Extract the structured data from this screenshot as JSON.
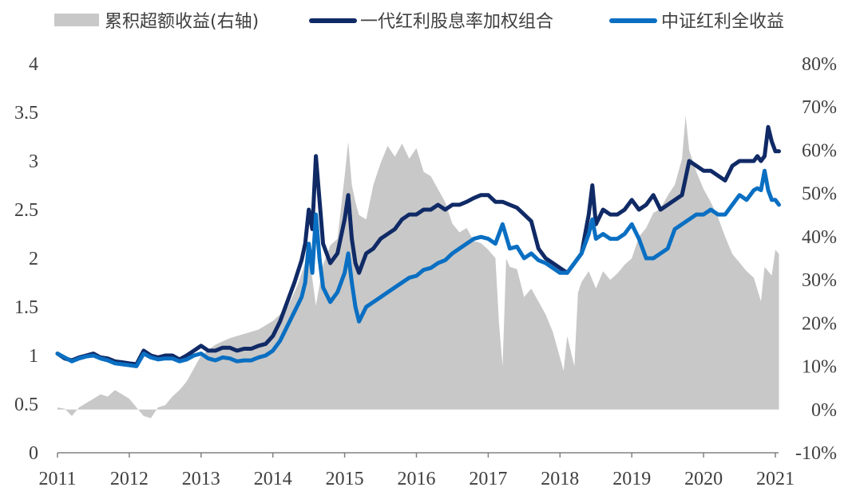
{
  "chart_data": {
    "type": "line",
    "legend_position": "top",
    "grid": false,
    "series": [
      {
        "name": "累积超额收益(右轴)",
        "type": "area",
        "axis": "right",
        "color": "#c8c8c8",
        "x": [
          2011.0,
          2011.1,
          2011.2,
          2011.3,
          2011.4,
          2011.5,
          2011.6,
          2011.7,
          2011.8,
          2011.9,
          2012.0,
          2012.1,
          2012.2,
          2012.3,
          2012.4,
          2012.5,
          2012.6,
          2012.7,
          2012.8,
          2012.9,
          2013.0,
          2013.2,
          2013.4,
          2013.6,
          2013.8,
          2014.0,
          2014.2,
          2014.35,
          2014.5,
          2014.6,
          2014.7,
          2014.8,
          2014.9,
          2015.0,
          2015.05,
          2015.1,
          2015.15,
          2015.2,
          2015.3,
          2015.4,
          2015.5,
          2015.6,
          2015.7,
          2015.8,
          2015.9,
          2016.0,
          2016.1,
          2016.2,
          2016.3,
          2016.4,
          2016.5,
          2016.6,
          2016.7,
          2016.8,
          2016.9,
          2017.0,
          2017.1,
          2017.15,
          2017.2,
          2017.25,
          2017.3,
          2017.4,
          2017.5,
          2017.6,
          2017.7,
          2017.8,
          2017.9,
          2018.0,
          2018.05,
          2018.1,
          2018.15,
          2018.2,
          2018.25,
          2018.3,
          2018.4,
          2018.5,
          2018.6,
          2018.7,
          2018.8,
          2018.9,
          2019.0,
          2019.1,
          2019.2,
          2019.3,
          2019.4,
          2019.5,
          2019.6,
          2019.7,
          2019.75,
          2019.8,
          2019.9,
          2020.0,
          2020.1,
          2020.2,
          2020.3,
          2020.4,
          2020.5,
          2020.6,
          2020.7,
          2020.8,
          2020.85,
          2020.9,
          2020.95,
          2021.0,
          2021.05
        ],
        "values": [
          0.5,
          0.2,
          -1.5,
          0.5,
          1.5,
          2.5,
          3.5,
          3.0,
          4.5,
          3.5,
          2.5,
          0.5,
          -1.5,
          -2.0,
          0.5,
          1.0,
          3.0,
          4.5,
          6.5,
          9.5,
          12.5,
          15.0,
          16.5,
          17.5,
          18.5,
          20.5,
          23.5,
          29.0,
          36.5,
          24.0,
          33.5,
          38.0,
          39.5,
          54.0,
          62.0,
          52.0,
          48.0,
          45.0,
          44.0,
          52.0,
          57.0,
          61.0,
          58.5,
          61.5,
          58.0,
          60.5,
          55.0,
          54.0,
          51.0,
          48.0,
          43.0,
          41.0,
          42.0,
          39.0,
          38.5,
          37.0,
          35.0,
          20.0,
          10.0,
          35.0,
          33.0,
          32.5,
          26.0,
          28.0,
          25.0,
          22.0,
          18.0,
          12.0,
          9.0,
          17.0,
          13.5,
          10.0,
          27.0,
          29.5,
          32.0,
          28.0,
          32.0,
          30.0,
          31.5,
          33.5,
          35.0,
          40.0,
          42.0,
          45.5,
          46.5,
          49.5,
          52.0,
          58.0,
          68.0,
          60.0,
          55.0,
          51.0,
          48.0,
          44.5,
          40.0,
          36.0,
          34.0,
          32.0,
          30.5,
          25.0,
          33.0,
          32.0,
          31.0,
          37.0,
          36.0
        ]
      },
      {
        "name": "一代红利股息率加权组合",
        "type": "line",
        "axis": "left",
        "color": "#102a66",
        "x": [
          2011.0,
          2011.1,
          2011.2,
          2011.3,
          2011.4,
          2011.5,
          2011.6,
          2011.7,
          2011.8,
          2011.9,
          2012.0,
          2012.1,
          2012.2,
          2012.3,
          2012.4,
          2012.5,
          2012.6,
          2012.7,
          2012.8,
          2012.9,
          2013.0,
          2013.1,
          2013.2,
          2013.3,
          2013.4,
          2013.5,
          2013.6,
          2013.7,
          2013.8,
          2013.9,
          2014.0,
          2014.1,
          2014.2,
          2014.3,
          2014.4,
          2014.45,
          2014.5,
          2014.55,
          2014.6,
          2014.65,
          2014.7,
          2014.8,
          2014.9,
          2015.0,
          2015.05,
          2015.1,
          2015.15,
          2015.2,
          2015.3,
          2015.4,
          2015.5,
          2015.6,
          2015.7,
          2015.8,
          2015.9,
          2016.0,
          2016.1,
          2016.2,
          2016.3,
          2016.4,
          2016.5,
          2016.6,
          2016.7,
          2016.8,
          2016.9,
          2017.0,
          2017.1,
          2017.2,
          2017.3,
          2017.4,
          2017.5,
          2017.6,
          2017.7,
          2017.8,
          2017.9,
          2018.0,
          2018.1,
          2018.2,
          2018.3,
          2018.4,
          2018.45,
          2018.5,
          2018.6,
          2018.7,
          2018.8,
          2018.9,
          2019.0,
          2019.1,
          2019.2,
          2019.3,
          2019.4,
          2019.5,
          2019.6,
          2019.7,
          2019.8,
          2019.9,
          2020.0,
          2020.1,
          2020.2,
          2020.3,
          2020.4,
          2020.5,
          2020.6,
          2020.7,
          2020.75,
          2020.8,
          2020.85,
          2020.9,
          2020.95,
          2021.0,
          2021.05
        ],
        "values": [
          1.02,
          0.97,
          0.95,
          0.98,
          1.0,
          1.02,
          0.98,
          0.97,
          0.94,
          0.93,
          0.92,
          0.91,
          1.05,
          1.0,
          0.98,
          1.0,
          1.0,
          0.96,
          1.0,
          1.05,
          1.1,
          1.05,
          1.05,
          1.08,
          1.08,
          1.05,
          1.07,
          1.07,
          1.1,
          1.12,
          1.2,
          1.35,
          1.55,
          1.75,
          1.98,
          2.15,
          2.5,
          2.3,
          3.05,
          2.6,
          2.15,
          1.95,
          2.05,
          2.4,
          2.65,
          2.2,
          1.95,
          1.85,
          2.05,
          2.1,
          2.2,
          2.25,
          2.3,
          2.4,
          2.45,
          2.45,
          2.5,
          2.5,
          2.55,
          2.5,
          2.55,
          2.55,
          2.58,
          2.62,
          2.65,
          2.65,
          2.58,
          2.58,
          2.55,
          2.52,
          2.45,
          2.38,
          2.1,
          2.0,
          1.95,
          1.9,
          1.85,
          1.95,
          2.05,
          2.45,
          2.75,
          2.35,
          2.5,
          2.45,
          2.45,
          2.5,
          2.6,
          2.5,
          2.55,
          2.65,
          2.5,
          2.55,
          2.6,
          2.65,
          3.0,
          2.95,
          2.9,
          2.9,
          2.85,
          2.8,
          2.95,
          3.0,
          3.0,
          3.0,
          3.05,
          3.0,
          3.05,
          3.35,
          3.2,
          3.1,
          3.1
        ]
      },
      {
        "name": "中证红利全收益",
        "type": "line",
        "axis": "left",
        "color": "#0a6fc2",
        "x": [
          2011.0,
          2011.1,
          2011.2,
          2011.3,
          2011.4,
          2011.5,
          2011.6,
          2011.7,
          2011.8,
          2011.9,
          2012.0,
          2012.1,
          2012.2,
          2012.3,
          2012.4,
          2012.5,
          2012.6,
          2012.7,
          2012.8,
          2012.9,
          2013.0,
          2013.1,
          2013.2,
          2013.3,
          2013.4,
          2013.5,
          2013.6,
          2013.7,
          2013.8,
          2013.9,
          2014.0,
          2014.1,
          2014.2,
          2014.3,
          2014.4,
          2014.45,
          2014.5,
          2014.55,
          2014.6,
          2014.65,
          2014.7,
          2014.8,
          2014.9,
          2015.0,
          2015.05,
          2015.1,
          2015.15,
          2015.2,
          2015.3,
          2015.4,
          2015.5,
          2015.6,
          2015.7,
          2015.8,
          2015.9,
          2016.0,
          2016.1,
          2016.2,
          2016.3,
          2016.4,
          2016.5,
          2016.6,
          2016.7,
          2016.8,
          2016.9,
          2017.0,
          2017.1,
          2017.2,
          2017.3,
          2017.4,
          2017.5,
          2017.6,
          2017.7,
          2017.8,
          2017.9,
          2018.0,
          2018.1,
          2018.2,
          2018.3,
          2018.4,
          2018.45,
          2018.5,
          2018.6,
          2018.7,
          2018.8,
          2018.9,
          2019.0,
          2019.1,
          2019.2,
          2019.3,
          2019.4,
          2019.5,
          2019.6,
          2019.7,
          2019.8,
          2019.9,
          2020.0,
          2020.1,
          2020.2,
          2020.3,
          2020.4,
          2020.5,
          2020.6,
          2020.7,
          2020.75,
          2020.8,
          2020.85,
          2020.9,
          2020.95,
          2021.0,
          2021.05
        ],
        "values": [
          1.02,
          0.98,
          0.94,
          0.97,
          0.99,
          1.0,
          0.97,
          0.95,
          0.92,
          0.91,
          0.9,
          0.89,
          1.02,
          0.98,
          0.96,
          0.97,
          0.97,
          0.94,
          0.96,
          1.0,
          1.02,
          0.97,
          0.95,
          0.98,
          0.97,
          0.94,
          0.95,
          0.95,
          0.98,
          1.0,
          1.05,
          1.15,
          1.3,
          1.45,
          1.6,
          1.75,
          2.15,
          1.85,
          2.45,
          2.0,
          1.7,
          1.55,
          1.65,
          1.85,
          2.05,
          1.75,
          1.5,
          1.35,
          1.5,
          1.55,
          1.6,
          1.65,
          1.7,
          1.75,
          1.8,
          1.82,
          1.88,
          1.9,
          1.95,
          1.98,
          2.05,
          2.1,
          2.15,
          2.2,
          2.22,
          2.2,
          2.15,
          2.35,
          2.1,
          2.12,
          2.0,
          2.05,
          1.98,
          1.95,
          1.9,
          1.85,
          1.85,
          1.95,
          2.05,
          2.25,
          2.4,
          2.2,
          2.25,
          2.2,
          2.2,
          2.25,
          2.35,
          2.2,
          2.0,
          2.0,
          2.05,
          2.1,
          2.3,
          2.35,
          2.4,
          2.45,
          2.45,
          2.5,
          2.45,
          2.45,
          2.55,
          2.65,
          2.6,
          2.7,
          2.72,
          2.7,
          2.9,
          2.7,
          2.6,
          2.6,
          2.55
        ]
      }
    ],
    "x_ticks": [
      "2011",
      "2012",
      "2013",
      "2014",
      "2015",
      "2016",
      "2017",
      "2018",
      "2019",
      "2020",
      "2021"
    ],
    "y_left": {
      "ticks": [
        "0",
        "0.5",
        "1",
        "1.5",
        "2",
        "2.5",
        "3",
        "3.5",
        "4"
      ],
      "range": [
        0,
        4
      ]
    },
    "y_right": {
      "ticks": [
        "-10%",
        "0%",
        "10%",
        "20%",
        "30%",
        "40%",
        "50%",
        "60%",
        "70%",
        "80%"
      ],
      "range": [
        -10,
        80
      ]
    },
    "x_range": [
      2011,
      2021.1
    ]
  }
}
